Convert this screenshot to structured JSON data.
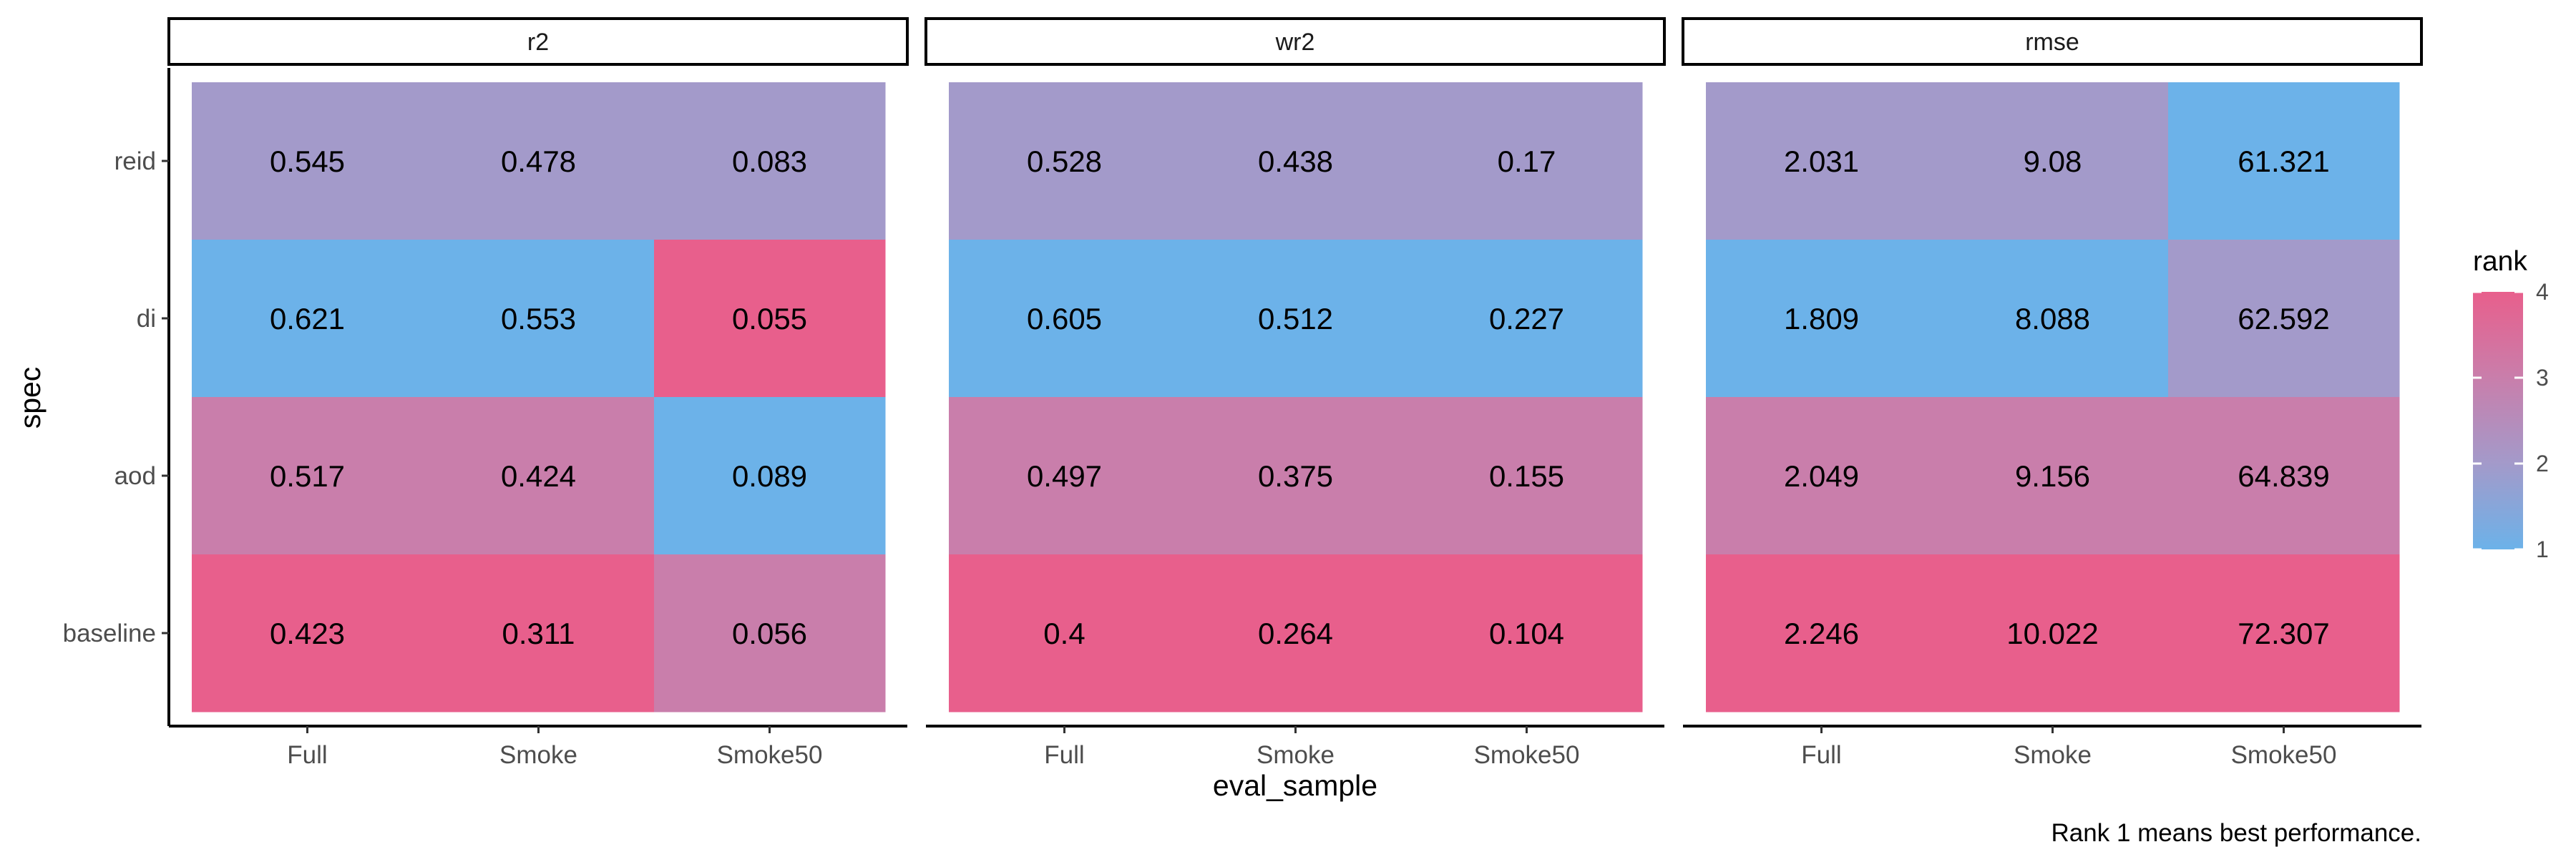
{
  "chart_data": {
    "type": "heatmap",
    "facet_order": [
      "r2",
      "wr2",
      "rmse"
    ],
    "xlabel": "eval_sample",
    "ylabel": "spec",
    "x_categories": [
      "Full",
      "Smoke",
      "Smoke50"
    ],
    "y_categories_top_to_bottom": [
      "reid",
      "di",
      "aod",
      "baseline"
    ],
    "panels": [
      {
        "name": "r2",
        "cells": {
          "reid": {
            "values": [
              "0.545",
              "0.478",
              "0.083"
            ],
            "ranks": [
              2,
              2,
              2
            ]
          },
          "di": {
            "values": [
              "0.621",
              "0.553",
              "0.055"
            ],
            "ranks": [
              1,
              1,
              4
            ]
          },
          "aod": {
            "values": [
              "0.517",
              "0.424",
              "0.089"
            ],
            "ranks": [
              3,
              3,
              1
            ]
          },
          "baseline": {
            "values": [
              "0.423",
              "0.311",
              "0.056"
            ],
            "ranks": [
              4,
              4,
              3
            ]
          }
        }
      },
      {
        "name": "wr2",
        "cells": {
          "reid": {
            "values": [
              "0.528",
              "0.438",
              "0.17"
            ],
            "ranks": [
              2,
              2,
              2
            ]
          },
          "di": {
            "values": [
              "0.605",
              "0.512",
              "0.227"
            ],
            "ranks": [
              1,
              1,
              1
            ]
          },
          "aod": {
            "values": [
              "0.497",
              "0.375",
              "0.155"
            ],
            "ranks": [
              3,
              3,
              3
            ]
          },
          "baseline": {
            "values": [
              "0.4",
              "0.264",
              "0.104"
            ],
            "ranks": [
              4,
              4,
              4
            ]
          }
        }
      },
      {
        "name": "rmse",
        "cells": {
          "reid": {
            "values": [
              "2.031",
              "9.08",
              "61.321"
            ],
            "ranks": [
              2,
              2,
              1
            ]
          },
          "di": {
            "values": [
              "1.809",
              "8.088",
              "62.592"
            ],
            "ranks": [
              1,
              1,
              2
            ]
          },
          "aod": {
            "values": [
              "2.049",
              "9.156",
              "64.839"
            ],
            "ranks": [
              3,
              3,
              3
            ]
          },
          "baseline": {
            "values": [
              "2.246",
              "10.022",
              "72.307"
            ],
            "ranks": [
              4,
              4,
              4
            ]
          }
        }
      }
    ],
    "legend": {
      "title": "rank",
      "ticks": [
        "1",
        "2",
        "3",
        "4"
      ],
      "placement": "right",
      "range": [
        1,
        4
      ]
    },
    "caption": "Rank 1 means best performance.",
    "colors": {
      "rank_1": "#6cb2e9",
      "rank_2": "#a39aca",
      "rank_3": "#c97eab",
      "rank_4": "#e85f8c"
    },
    "grid": false
  }
}
